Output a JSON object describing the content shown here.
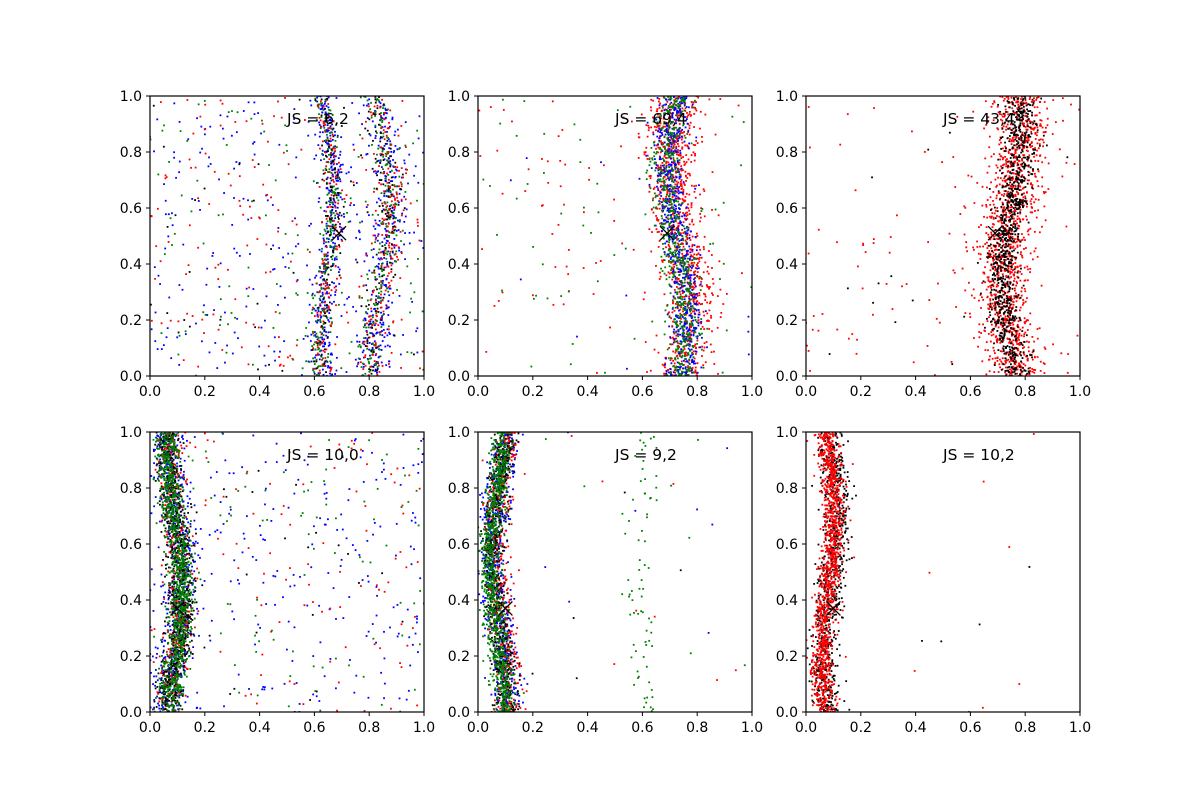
{
  "figure": {
    "background": "#ffffff",
    "colors": {
      "black": "#000000",
      "red": "#ff0000",
      "blue": "#0000ff",
      "green": "#008000"
    }
  },
  "chart_data": [
    {
      "type": "scatter",
      "annotation": "JS = 6,2",
      "xlim": [
        0.0,
        1.0
      ],
      "ylim": [
        0.0,
        1.0
      ],
      "xticks": [
        "0.0",
        "0.2",
        "0.4",
        "0.6",
        "0.8",
        "1.0"
      ],
      "yticks": [
        "0.0",
        "0.2",
        "0.4",
        "0.6",
        "0.8",
        "1.0"
      ],
      "marker": {
        "label": "×",
        "x": 0.69,
        "y": 0.51
      },
      "series": [
        {
          "color": "blue",
          "count": 900,
          "bands": [
            {
              "center": 0.65,
              "amp": 0.025,
              "sigma": 0.022,
              "weight": 0.35
            },
            {
              "center": 0.85,
              "amp": 0.035,
              "sigma": 0.03,
              "weight": 0.35
            }
          ],
          "background": 0.3
        },
        {
          "color": "green",
          "count": 550,
          "bands": [
            {
              "center": 0.64,
              "amp": 0.025,
              "sigma": 0.018,
              "weight": 0.4
            },
            {
              "center": 0.84,
              "amp": 0.035,
              "sigma": 0.025,
              "weight": 0.4
            }
          ],
          "background": 0.2
        },
        {
          "color": "red",
          "count": 500,
          "bands": [
            {
              "center": 0.65,
              "amp": 0.025,
              "sigma": 0.02,
              "weight": 0.35
            },
            {
              "center": 0.85,
              "amp": 0.035,
              "sigma": 0.028,
              "weight": 0.35
            }
          ],
          "background": 0.3
        },
        {
          "color": "black",
          "count": 250,
          "bands": [
            {
              "center": 0.65,
              "amp": 0.025,
              "sigma": 0.015,
              "weight": 0.35
            },
            {
              "center": 0.84,
              "amp": 0.035,
              "sigma": 0.02,
              "weight": 0.45
            }
          ],
          "background": 0.2
        }
      ]
    },
    {
      "type": "scatter",
      "annotation": "JS = 69,4",
      "xlim": [
        0.0,
        1.0
      ],
      "ylim": [
        0.0,
        1.0
      ],
      "xticks": [
        "0.0",
        "0.2",
        "0.4",
        "0.6",
        "0.8",
        "1.0"
      ],
      "yticks": [
        "0.0",
        "0.2",
        "0.4",
        "0.6",
        "0.8",
        "1.0"
      ],
      "marker": {
        "label": "×",
        "x": 0.69,
        "y": 0.51
      },
      "series": [
        {
          "color": "red",
          "count": 1100,
          "bands": [
            {
              "center": 0.74,
              "amp": 0.035,
              "sigma": 0.045,
              "weight": 0.93
            }
          ],
          "background": 0.07
        },
        {
          "color": "blue",
          "count": 700,
          "bands": [
            {
              "center": 0.73,
              "amp": 0.035,
              "sigma": 0.03,
              "weight": 0.97
            }
          ],
          "background": 0.03
        },
        {
          "color": "green",
          "count": 650,
          "bands": [
            {
              "center": 0.72,
              "amp": 0.035,
              "sigma": 0.028,
              "weight": 0.9
            }
          ],
          "background": 0.1
        }
      ]
    },
    {
      "type": "scatter",
      "annotation": "JS = 43,4",
      "xlim": [
        0.0,
        1.0
      ],
      "ylim": [
        0.0,
        1.0
      ],
      "xticks": [
        "0.0",
        "0.2",
        "0.4",
        "0.6",
        "0.8",
        "1.0"
      ],
      "yticks": [
        "0.0",
        "0.2",
        "0.4",
        "0.6",
        "0.8",
        "1.0"
      ],
      "marker": {
        "label": "×",
        "x": 0.69,
        "y": 0.51
      },
      "series": [
        {
          "color": "red",
          "count": 1400,
          "bands": [
            {
              "center": 0.75,
              "amp": 0.035,
              "sigma": 0.05,
              "weight": 0.93
            }
          ],
          "background": 0.07
        },
        {
          "color": "black",
          "count": 900,
          "bands": [
            {
              "center": 0.75,
              "amp": 0.035,
              "sigma": 0.03,
              "weight": 0.98
            }
          ],
          "background": 0.02
        }
      ]
    },
    {
      "type": "scatter",
      "annotation": "JS = 10,0",
      "xlim": [
        0.0,
        1.0
      ],
      "ylim": [
        0.0,
        1.0
      ],
      "xticks": [
        "0.0",
        "0.2",
        "0.4",
        "0.6",
        "0.8",
        "1.0"
      ],
      "yticks": [
        "0.0",
        "0.2",
        "0.4",
        "0.6",
        "0.8",
        "1.0"
      ],
      "marker": {
        "label": "×",
        "x": 0.1,
        "y": 0.37
      },
      "series": [
        {
          "color": "blue",
          "count": 900,
          "bands": [
            {
              "center": 0.09,
              "amp": 0.025,
              "sigma": 0.03,
              "weight": 0.75
            }
          ],
          "background": 0.25
        },
        {
          "color": "red",
          "count": 500,
          "bands": [
            {
              "center": 0.09,
              "amp": 0.025,
              "sigma": 0.025,
              "weight": 0.8
            }
          ],
          "background": 0.2
        },
        {
          "color": "black",
          "count": 800,
          "bands": [
            {
              "center": 0.09,
              "amp": 0.025,
              "sigma": 0.022,
              "weight": 0.95
            }
          ],
          "background": 0.05
        },
        {
          "color": "green",
          "count": 1100,
          "bands": [
            {
              "center": 0.09,
              "amp": 0.025,
              "sigma": 0.022,
              "weight": 0.92
            }
          ],
          "background": 0.08
        }
      ]
    },
    {
      "type": "scatter",
      "annotation": "JS = 9,2",
      "xlim": [
        0.0,
        1.0
      ],
      "ylim": [
        0.0,
        1.0
      ],
      "xticks": [
        "0.0",
        "0.2",
        "0.4",
        "0.6",
        "0.8",
        "1.0"
      ],
      "yticks": [
        "0.0",
        "0.2",
        "0.4",
        "0.6",
        "0.8",
        "1.0"
      ],
      "marker": {
        "label": "×",
        "x": 0.1,
        "y": 0.37
      },
      "series": [
        {
          "color": "blue",
          "count": 700,
          "bands": [
            {
              "center": 0.08,
              "amp": 0.025,
              "sigma": 0.025,
              "weight": 0.99
            }
          ],
          "background": 0.01
        },
        {
          "color": "red",
          "count": 500,
          "bands": [
            {
              "center": 0.09,
              "amp": 0.025,
              "sigma": 0.025,
              "weight": 0.98
            }
          ],
          "background": 0.02
        },
        {
          "color": "black",
          "count": 600,
          "bands": [
            {
              "center": 0.08,
              "amp": 0.025,
              "sigma": 0.02,
              "weight": 0.99
            }
          ],
          "background": 0.01
        },
        {
          "color": "green",
          "count": 1000,
          "bands": [
            {
              "center": 0.07,
              "amp": 0.025,
              "sigma": 0.02,
              "weight": 0.92
            },
            {
              "center": 0.6,
              "amp": 0.02,
              "sigma": 0.03,
              "weight": 0.07
            }
          ],
          "background": 0.01
        }
      ]
    },
    {
      "type": "scatter",
      "annotation": "JS = 10,2",
      "xlim": [
        0.0,
        1.0
      ],
      "ylim": [
        0.0,
        1.0
      ],
      "xticks": [
        "0.0",
        "0.2",
        "0.4",
        "0.6",
        "0.8",
        "1.0"
      ],
      "yticks": [
        "0.0",
        "0.2",
        "0.4",
        "0.6",
        "0.8",
        "1.0"
      ],
      "marker": {
        "label": "×",
        "x": 0.1,
        "y": 0.37
      },
      "series": [
        {
          "color": "black",
          "count": 800,
          "bands": [
            {
              "center": 0.09,
              "amp": 0.022,
              "sigma": 0.025,
              "weight": 0.995
            }
          ],
          "background": 0.005
        },
        {
          "color": "red",
          "count": 1200,
          "bands": [
            {
              "center": 0.08,
              "amp": 0.022,
              "sigma": 0.02,
              "weight": 0.995
            }
          ],
          "background": 0.005
        }
      ]
    }
  ]
}
